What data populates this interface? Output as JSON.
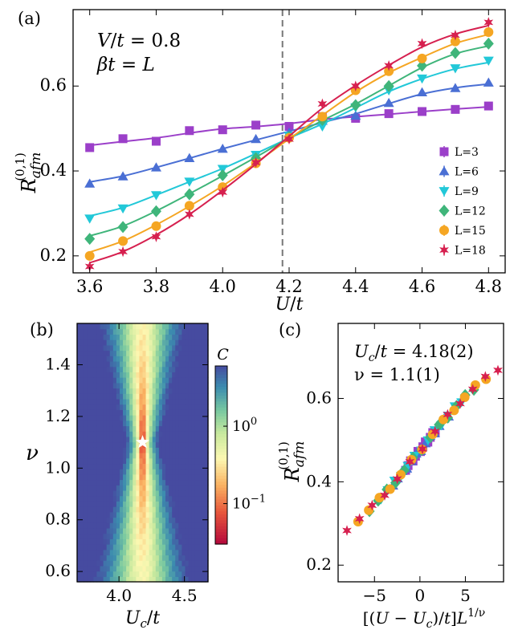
{
  "figure": {
    "panel_labels": {
      "a": "(a)",
      "b": "(b)",
      "c": "(c)"
    }
  },
  "chart_data": [
    {
      "type": "line",
      "panel": "a",
      "xlabel": "U/t",
      "ylabel": "R_afm^(0,1)",
      "xlim": [
        3.55,
        4.85
      ],
      "ylim": [
        0.16,
        0.78
      ],
      "xticks": [
        3.6,
        3.8,
        4.0,
        4.2,
        4.4,
        4.6,
        4.8
      ],
      "xtick_labels": [
        "3.6",
        "3.8",
        "4.0",
        "4.2",
        "4.4",
        "4.6",
        "4.8"
      ],
      "yticks": [
        0.2,
        0.4,
        0.6
      ],
      "ytick_labels": [
        "0.2",
        "0.4",
        "0.6"
      ],
      "vline": 4.18,
      "annotations": [
        "V/t = 0.8",
        "βt = L"
      ],
      "legend_position": "right",
      "x": [
        3.6,
        3.7,
        3.8,
        3.9,
        4.0,
        4.1,
        4.2,
        4.3,
        4.4,
        4.5,
        4.6,
        4.7,
        4.8
      ],
      "series": [
        {
          "name": "L=3",
          "marker": "square",
          "color": "#9b3fc9",
          "values": [
            0.455,
            0.476,
            0.47,
            0.495,
            0.497,
            0.508,
            0.505,
            0.528,
            0.524,
            0.535,
            0.54,
            0.545,
            0.553
          ]
        },
        {
          "name": "L=6",
          "marker": "triangle-up",
          "color": "#4a6fd4",
          "values": [
            0.37,
            0.387,
            0.408,
            0.43,
            0.452,
            0.475,
            0.49,
            0.518,
            0.53,
            0.56,
            0.585,
            0.595,
            0.608
          ]
        },
        {
          "name": "L=9",
          "marker": "triangle-down",
          "color": "#22c8d8",
          "values": [
            0.288,
            0.312,
            0.343,
            0.375,
            0.405,
            0.438,
            0.483,
            0.505,
            0.55,
            0.59,
            0.618,
            0.642,
            0.66
          ]
        },
        {
          "name": "L=12",
          "marker": "diamond",
          "color": "#3fb57a",
          "values": [
            0.24,
            0.268,
            0.305,
            0.345,
            0.39,
            0.43,
            0.48,
            0.52,
            0.555,
            0.6,
            0.648,
            0.678,
            0.7
          ]
        },
        {
          "name": "L=15",
          "marker": "circle",
          "color": "#f5a623",
          "values": [
            0.2,
            0.235,
            0.27,
            0.318,
            0.362,
            0.418,
            0.478,
            0.528,
            0.59,
            0.635,
            0.665,
            0.705,
            0.727
          ]
        },
        {
          "name": "L=18",
          "marker": "star",
          "color": "#d6204f",
          "values": [
            0.175,
            0.21,
            0.245,
            0.298,
            0.35,
            0.42,
            0.475,
            0.558,
            0.6,
            0.648,
            0.7,
            0.72,
            0.75
          ]
        }
      ]
    },
    {
      "type": "heatmap",
      "panel": "b",
      "xlabel": "U_c/t",
      "ylabel": "ν",
      "xlim": [
        3.68,
        4.68
      ],
      "ylim": [
        0.56,
        1.56
      ],
      "xticks": [
        4.0,
        4.5
      ],
      "xtick_labels": [
        "4.0",
        "4.5"
      ],
      "yticks": [
        0.6,
        0.8,
        1.0,
        1.2,
        1.4
      ],
      "ytick_labels": [
        "0.6",
        "0.8",
        "1.0",
        "1.2",
        "1.4"
      ],
      "minimum": {
        "Uc": 4.18,
        "nu": 1.1
      },
      "colorbar": {
        "label": "C",
        "scale": "log",
        "range": [
          0.03,
          6
        ],
        "tick_labels": [
          "10^0",
          "10^-1"
        ],
        "tick_values": [
          1,
          0.1
        ]
      }
    },
    {
      "type": "scatter",
      "panel": "c",
      "xlabel": "[(U − U_c)/t] L^(1/ν)",
      "ylabel": "R_afm^(0,1)",
      "xlim": [
        -9,
        9.2
      ],
      "ylim": [
        0.16,
        0.78
      ],
      "xticks": [
        -5,
        0,
        5
      ],
      "xtick_labels": [
        "−5",
        "0",
        "5"
      ],
      "yticks": [
        0.2,
        0.4,
        0.6
      ],
      "ytick_labels": [
        "0.2",
        "0.4",
        "0.6"
      ],
      "annotations": [
        "U_c/t = 4.18(2)",
        "ν = 1.1(1)"
      ],
      "Uc": 4.18,
      "nu": 1.1
    }
  ]
}
